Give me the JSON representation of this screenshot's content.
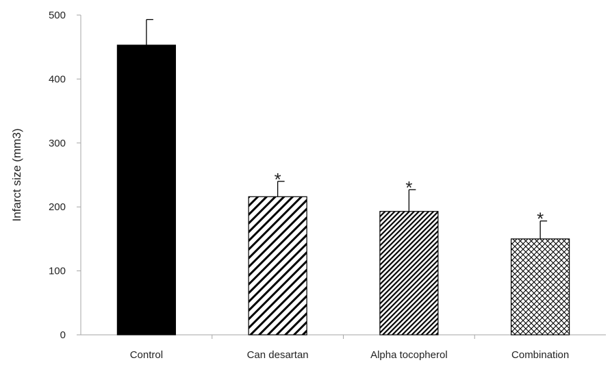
{
  "chart_data": {
    "type": "bar",
    "categories": [
      "Control",
      "Can desartan",
      "Alpha tocopherol",
      "Combination"
    ],
    "values": [
      453,
      216,
      193,
      150
    ],
    "error_plus": [
      40,
      24,
      34,
      28
    ],
    "significance": [
      "",
      "*",
      "*",
      "*"
    ],
    "patterns": [
      "solid",
      "diagonal-wide",
      "diagonal-dense",
      "crosshatch"
    ],
    "title": "",
    "xlabel": "",
    "ylabel": "Infarct size (mm3)",
    "ylim": [
      0,
      500
    ],
    "yticks": [
      0,
      100,
      200,
      300,
      400,
      500
    ],
    "grid": false,
    "legend": "none",
    "colors": {
      "bar_fill": "#000000",
      "axis": "#a6a6a6",
      "text": "#222222"
    }
  }
}
